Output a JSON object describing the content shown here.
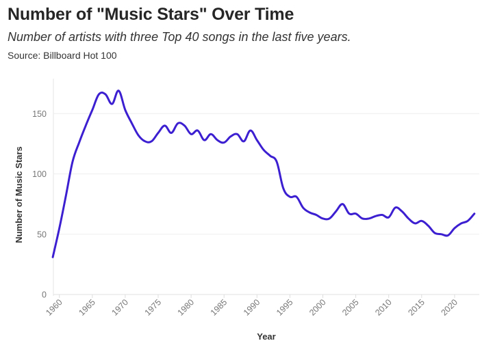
{
  "header": {
    "title": "Number of \"Music Stars\" Over Time",
    "subtitle": "Number of artists with three Top 40 songs in the last five years.",
    "source": "Source: Billboard Hot 100"
  },
  "chart_data": {
    "type": "line",
    "title": "Number of \"Music Stars\" Over Time",
    "subtitle": "Number of artists with three Top 40 songs in the last five years.",
    "source": "Source: Billboard Hot 100",
    "xlabel": "Year",
    "ylabel": "Number of Music Stars",
    "xlim": [
      1959,
      2023
    ],
    "ylim": [
      0,
      170
    ],
    "grid": true,
    "x_ticks": [
      1960,
      1965,
      1970,
      1975,
      1980,
      1985,
      1990,
      1995,
      2000,
      2005,
      2010,
      2015,
      2020
    ],
    "x_tick_labels": [
      "1960",
      "1965",
      "1970",
      "1975",
      "1980",
      "1985",
      "1990",
      "1995",
      "2000",
      "2005",
      "2010",
      "2015",
      "2020"
    ],
    "y_ticks": [
      0,
      50,
      100,
      150
    ],
    "y_tick_labels": [
      "0",
      "50",
      "100",
      "150"
    ],
    "line_color": "#3b1fd0",
    "series": [
      {
        "name": "Music Stars",
        "x": [
          1959,
          1960,
          1961,
          1962,
          1963,
          1964,
          1965,
          1966,
          1967,
          1968,
          1969,
          1970,
          1971,
          1972,
          1973,
          1974,
          1975,
          1976,
          1977,
          1978,
          1979,
          1980,
          1981,
          1982,
          1983,
          1984,
          1985,
          1986,
          1987,
          1988,
          1989,
          1990,
          1991,
          1992,
          1993,
          1994,
          1995,
          1996,
          1997,
          1998,
          1999,
          2000,
          2001,
          2002,
          2003,
          2004,
          2005,
          2006,
          2007,
          2008,
          2009,
          2010,
          2011,
          2012,
          2013,
          2014,
          2015,
          2016,
          2017,
          2018,
          2019,
          2020,
          2021,
          2022,
          2023
        ],
        "values": [
          31,
          55,
          82,
          110,
          126,
          140,
          153,
          166,
          166,
          158,
          169,
          153,
          142,
          132,
          127,
          127,
          134,
          140,
          134,
          142,
          140,
          133,
          136,
          128,
          133,
          128,
          126,
          131,
          133,
          127,
          136,
          128,
          120,
          115,
          110,
          88,
          81,
          81,
          72,
          68,
          66,
          63,
          63,
          69,
          75,
          67,
          67,
          63,
          63,
          65,
          66,
          64,
          72,
          69,
          63,
          59,
          61,
          57,
          51,
          50,
          49,
          55,
          59,
          61,
          67
        ]
      }
    ]
  }
}
